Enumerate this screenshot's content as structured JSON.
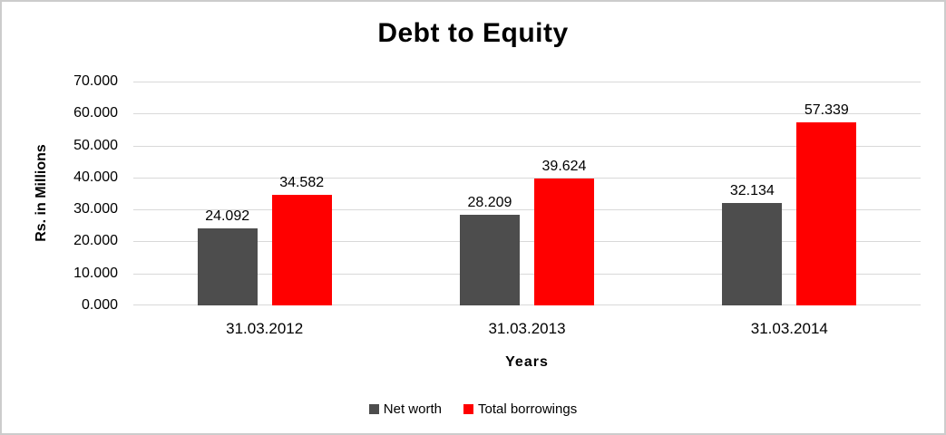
{
  "colors": {
    "background": "#ffffff",
    "figure_border": "#cccccc",
    "gridline": "#d9d9d9",
    "text": "#000000",
    "net_worth_bar": "#4d4d4d",
    "total_borrowings_bar": "#ff0000"
  },
  "chart_data": {
    "type": "bar",
    "title": "Debt to Equity",
    "xlabel": "Years",
    "ylabel": "Rs. in Millions",
    "categories": [
      "31.03.2012",
      "31.03.2013",
      "31.03.2014"
    ],
    "series": [
      {
        "name": "Net worth",
        "color": "#4d4d4d",
        "values": [
          24.092,
          28.209,
          32.134
        ],
        "labels": [
          "24.092",
          "28.209",
          "32.134"
        ]
      },
      {
        "name": "Total borrowings",
        "color": "#ff0000",
        "values": [
          34.582,
          39.624,
          57.339
        ],
        "labels": [
          "34.582",
          "39.624",
          "57.339"
        ]
      }
    ],
    "ylim": [
      0,
      70
    ],
    "ytick_step": 10,
    "yticks": [
      {
        "value": 0,
        "label": "0.000"
      },
      {
        "value": 10,
        "label": "10.000"
      },
      {
        "value": 20,
        "label": "20.000"
      },
      {
        "value": 30,
        "label": "30.000"
      },
      {
        "value": 40,
        "label": "40.000"
      },
      {
        "value": 50,
        "label": "50.000"
      },
      {
        "value": 60,
        "label": "60.000"
      },
      {
        "value": 70,
        "label": "70.000"
      }
    ],
    "grid": true,
    "gridline_color": "#d9d9d9",
    "legend_position": "bottom"
  }
}
